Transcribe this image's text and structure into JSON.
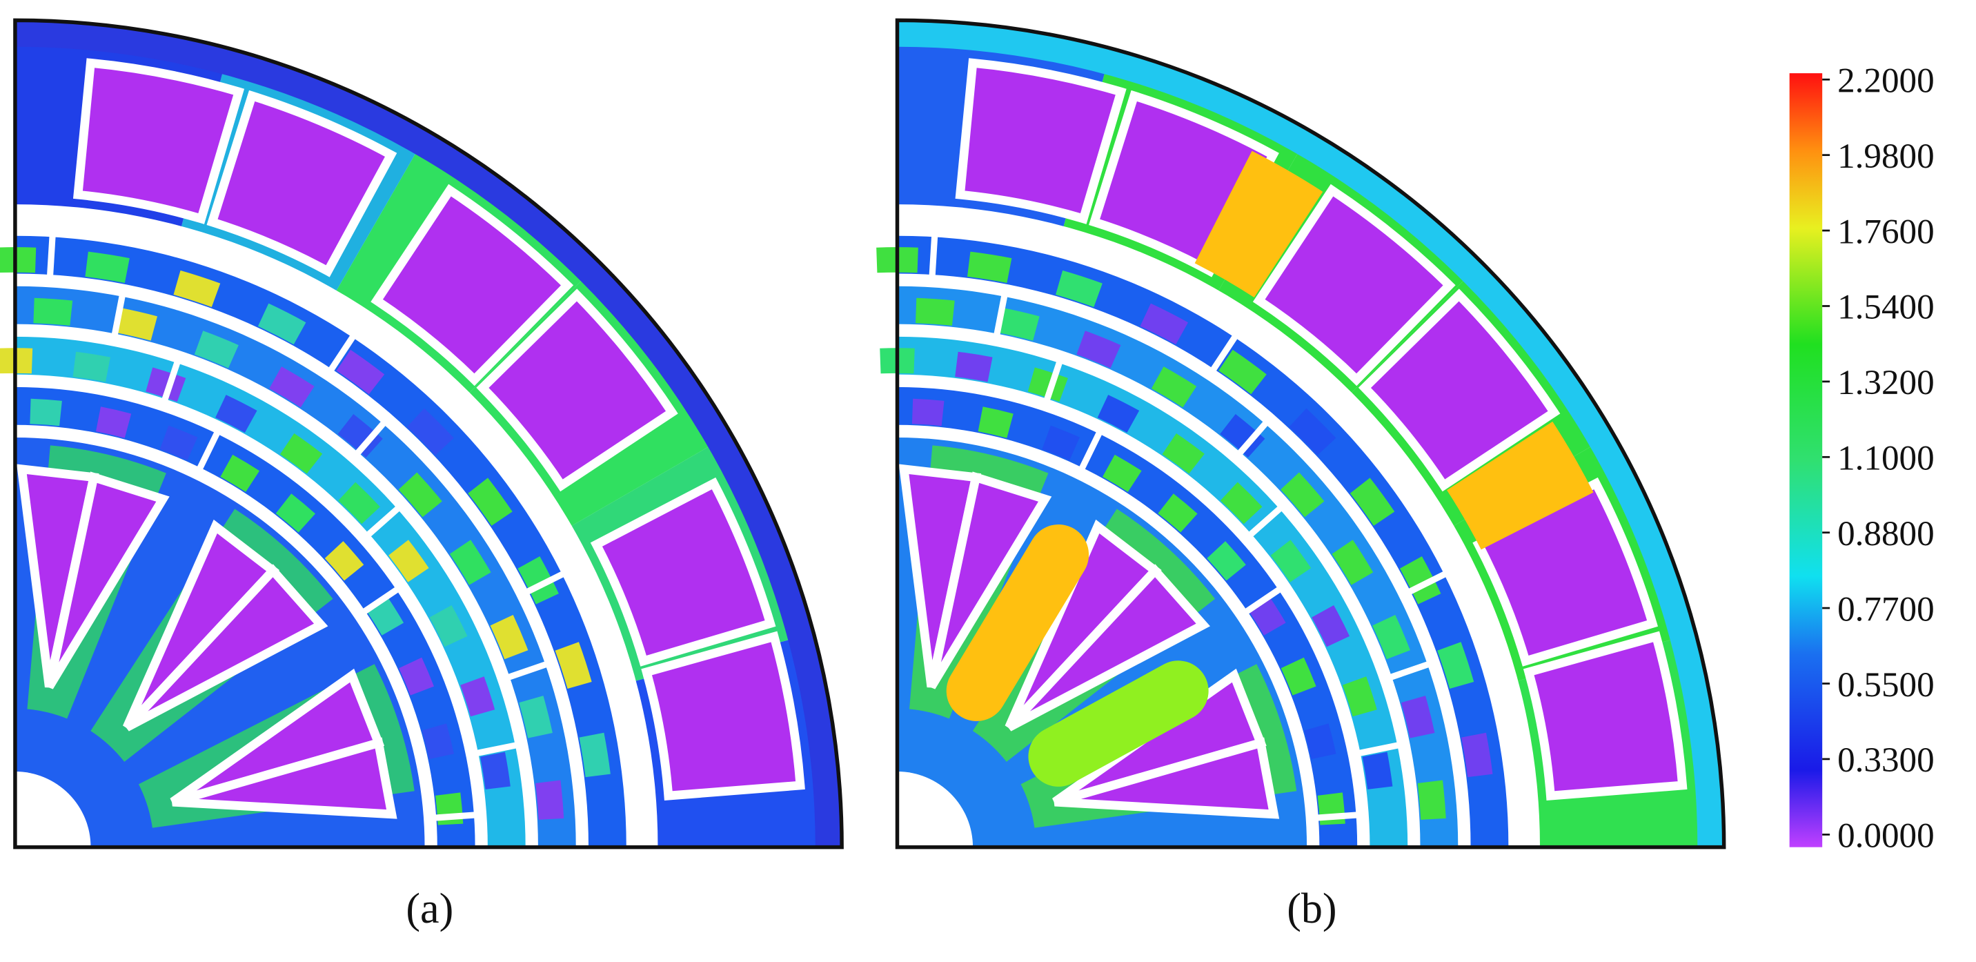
{
  "panels": [
    {
      "label": "(a)"
    },
    {
      "label": "(b)"
    }
  ],
  "colorbar": {
    "ticks": [
      {
        "value": 0,
        "label": "0.0000"
      },
      {
        "value": 0.33,
        "label": "0.3300"
      },
      {
        "value": 0.55,
        "label": "0.5500"
      },
      {
        "value": 0.77,
        "label": "0.7700"
      },
      {
        "value": 0.88,
        "label": "0.8800"
      },
      {
        "value": 1.1,
        "label": "1.1000"
      },
      {
        "value": 1.32,
        "label": "1.3200"
      },
      {
        "value": 1.54,
        "label": "1.5400"
      },
      {
        "value": 1.76,
        "label": "1.7600"
      },
      {
        "value": 1.98,
        "label": "1.9800"
      },
      {
        "value": 2.2,
        "label": "2.2000"
      }
    ]
  }
}
